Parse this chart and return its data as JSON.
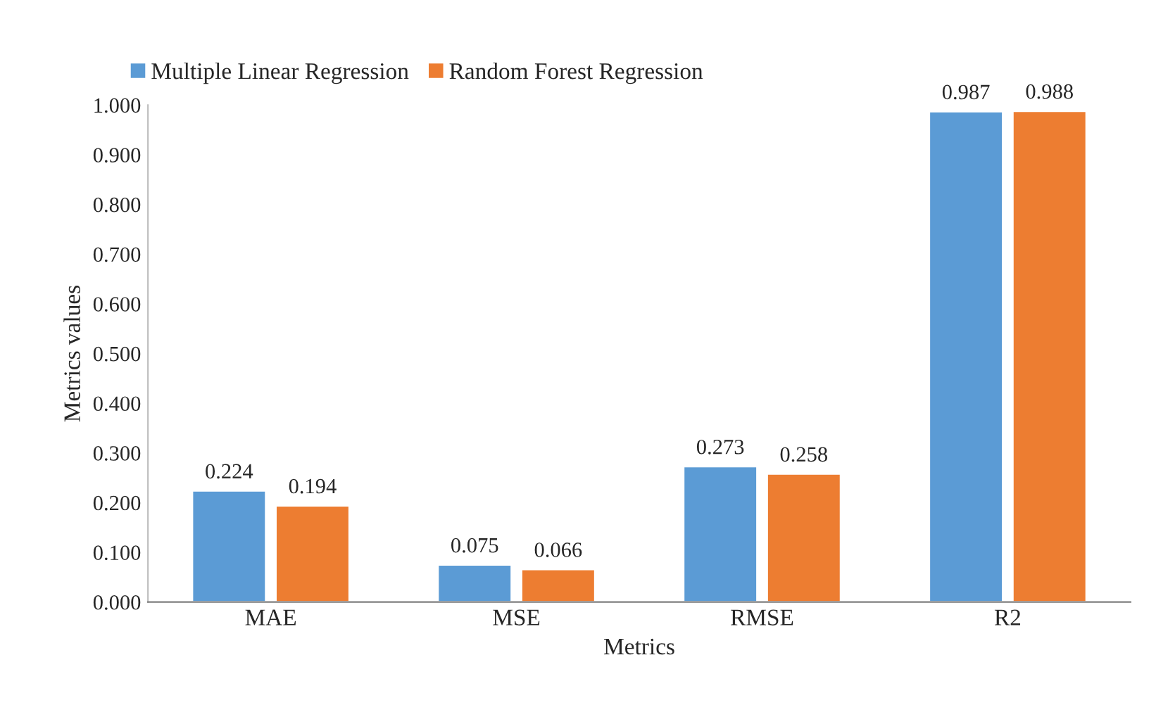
{
  "chart_data": {
    "type": "bar",
    "xlabel": "Metrics",
    "ylabel": "Metrics values",
    "categories": [
      "MAE",
      "MSE",
      "RMSE",
      "R2"
    ],
    "series": [
      {
        "name": "Multiple Linear Regression",
        "color": "#5b9bd5",
        "values": [
          0.224,
          0.075,
          0.273,
          0.987
        ],
        "value_labels": [
          "0.224",
          "0.075",
          "0.273",
          "0.987"
        ]
      },
      {
        "name": "Random Forest Regression",
        "color": "#ed7d31",
        "values": [
          0.194,
          0.066,
          0.258,
          0.988
        ],
        "value_labels": [
          "0.194",
          "0.066",
          "0.258",
          "0.988"
        ]
      }
    ],
    "ylim": [
      0,
      1
    ],
    "yticks": [
      {
        "value": 0,
        "label": "0.000"
      },
      {
        "value": 0.1,
        "label": "0.100"
      },
      {
        "value": 0.2,
        "label": "0.200"
      },
      {
        "value": 0.3,
        "label": "0.300"
      },
      {
        "value": 0.4,
        "label": "0.400"
      },
      {
        "value": 0.5,
        "label": "0.500"
      },
      {
        "value": 0.6,
        "label": "0.600"
      },
      {
        "value": 0.7,
        "label": "0.700"
      },
      {
        "value": 0.8,
        "label": "0.800"
      },
      {
        "value": 0.9,
        "label": "0.900"
      },
      {
        "value": 1,
        "label": "1.000"
      }
    ],
    "grid": false,
    "legend": "top left"
  }
}
